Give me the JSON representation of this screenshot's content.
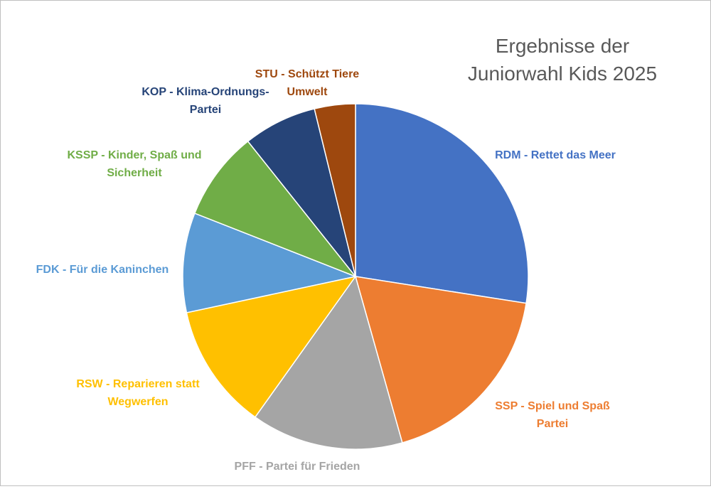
{
  "chart_data": {
    "type": "pie",
    "title_lines": [
      "Ergebnisse der",
      "Juniorwahl Kids 2025"
    ],
    "start_angle_deg": 0,
    "direction": "clockwise",
    "slices": [
      {
        "name": "RDM - Rettet das Meer",
        "label_lines": [
          "RDM - Rettet das Meer"
        ],
        "value": 28.0,
        "color": "#4472C4",
        "label_color": "#4472C4"
      },
      {
        "name": "SSP - Spiel und Spaß Partei",
        "label_lines": [
          "SSP - Spiel und Spaß",
          "Partei"
        ],
        "value": 18.5,
        "color": "#ED7D31",
        "label_color": "#ED7D31"
      },
      {
        "name": "PFF - Partei für Frieden",
        "label_lines": [
          "PFF - Partei für Frieden"
        ],
        "value": 14.5,
        "color": "#A5A5A5",
        "label_color": "#A5A5A5"
      },
      {
        "name": "RSW - Reparieren statt Wegwerfen",
        "label_lines": [
          "RSW - Reparieren statt",
          "Wegwerfen"
        ],
        "value": 12.0,
        "color": "#FFC000",
        "label_color": "#FFC000"
      },
      {
        "name": "FDK - Für die Kaninchen",
        "label_lines": [
          "FDK - Für die Kaninchen"
        ],
        "value": 9.5,
        "color": "#5B9BD5",
        "label_color": "#5B9BD5"
      },
      {
        "name": "KSSP - Kinder, Spaß und Sicherheit",
        "label_lines": [
          "KSSP - Kinder, Spaß und",
          "Sicherheit"
        ],
        "value": 8.5,
        "color": "#70AD47",
        "label_color": "#70AD47"
      },
      {
        "name": "KOP - Klima-Ordnungs-Partei",
        "label_lines": [
          "KOP - Klima-Ordnungs-",
          "Partei"
        ],
        "value": 7.0,
        "color": "#264478",
        "label_color": "#264478"
      },
      {
        "name": "STU - Schützt Tiere Umwelt",
        "label_lines": [
          "STU - Schützt Tiere",
          "Umwelt"
        ],
        "value": 3.9,
        "color": "#9E480E",
        "label_color": "#9E480E"
      }
    ]
  }
}
